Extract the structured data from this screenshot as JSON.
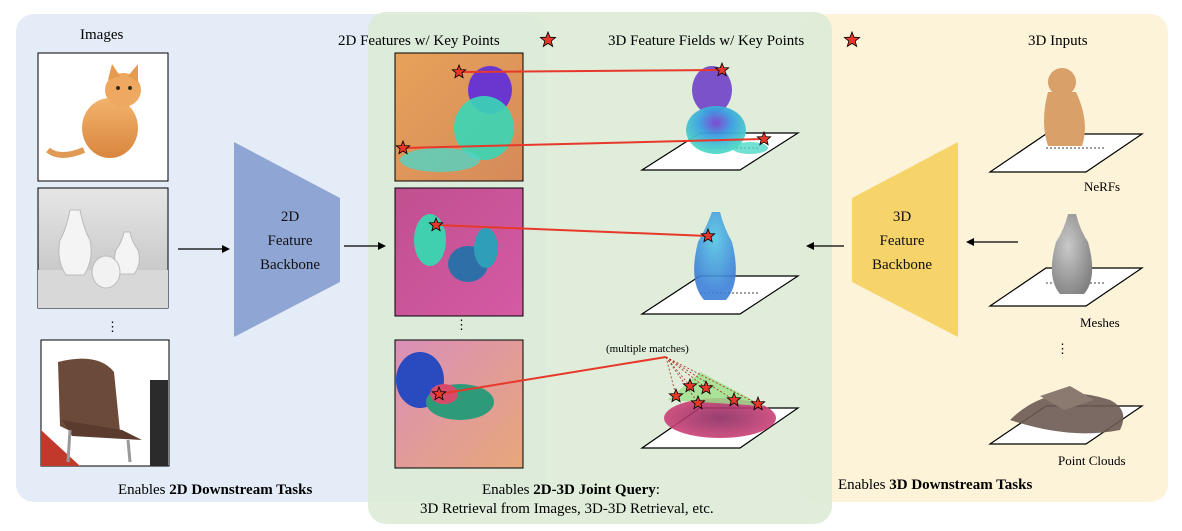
{
  "left_panel": {
    "title": "Images",
    "backbone": [
      "2D",
      "Feature",
      "Backbone"
    ],
    "footer_prefix": "Enables ",
    "footer_bold": "2D Downstream Tasks",
    "ellipsis": "⋮"
  },
  "middle_panel": {
    "title_2d": "2D Features w/ Key Points",
    "title_3d": "3D Feature Fields w/ Key Points",
    "annotation": "(multiple matches)",
    "footer_prefix": "Enables ",
    "footer_bold": "2D-3D Joint Query",
    "footer_suffix": ":",
    "footer_line2": "3D Retrieval from Images, 3D-3D Retrieval, etc.",
    "ellipsis": "⋮"
  },
  "right_panel": {
    "title": "3D Inputs",
    "backbone": [
      "3D",
      "Feature",
      "Backbone"
    ],
    "items": [
      "NeRFs",
      "Meshes",
      "Point Clouds"
    ],
    "footer_prefix": "Enables ",
    "footer_bold": "3D Downstream Tasks",
    "ellipsis": "⋮"
  },
  "colors": {
    "panel_2d": "#e3ecf7",
    "panel_joint": "#dcebd6",
    "panel_3d": "#fdf3d9",
    "backbone_2d": "#8fa6d4",
    "backbone_3d": "#f6d469",
    "match_line": "#e8382a",
    "star": "#e8382a"
  }
}
